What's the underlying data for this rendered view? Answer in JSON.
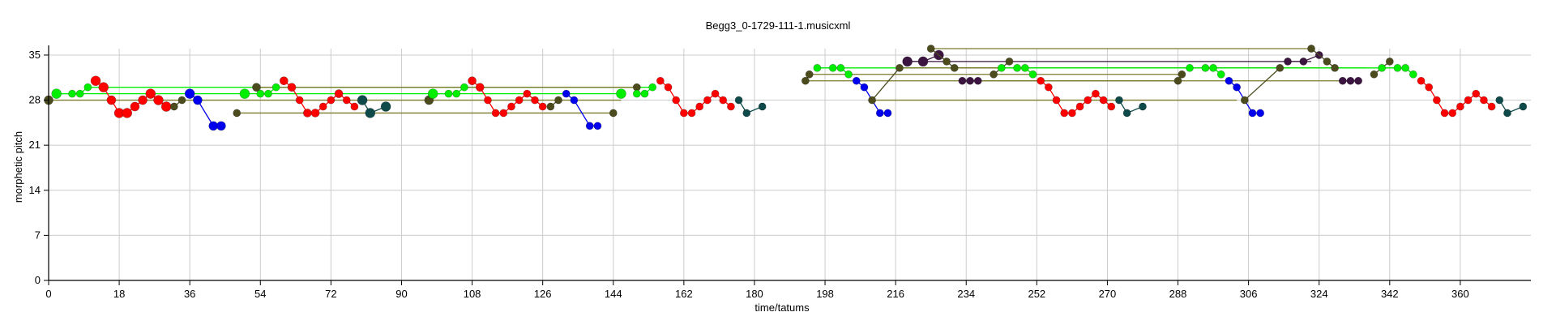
{
  "chart_data": {
    "type": "scatter",
    "title": "Begg3_0-1729-111-1.musicxml",
    "xlabel": "time/tatums",
    "ylabel": "morphetic pitch",
    "xlim": [
      0,
      378
    ],
    "ylim": [
      0,
      36
    ],
    "xticks": [
      0,
      18,
      36,
      54,
      72,
      90,
      108,
      126,
      144,
      162,
      180,
      198,
      216,
      234,
      252,
      270,
      288,
      306,
      324,
      342,
      360
    ],
    "yticks": [
      0,
      7,
      14,
      21,
      28,
      35
    ],
    "grid": true,
    "colors": {
      "red": "#ff0000",
      "green": "#00ee00",
      "blue": "#0000ee",
      "olive": "#4b4b1e",
      "teal": "#0f4a4a",
      "purple": "#3c1440",
      "olive_line": "#7a7a2a"
    },
    "links": [
      {
        "x1": 0,
        "x2": 146,
        "y": 28,
        "color": "olive_line"
      },
      {
        "x1": 2,
        "x2": 147,
        "y": 29,
        "color": "green"
      },
      {
        "x1": 10,
        "x2": 154,
        "y": 30,
        "color": "green"
      },
      {
        "x1": 48,
        "x2": 144,
        "y": 26,
        "color": "olive_line"
      },
      {
        "x1": 52,
        "x2": 150,
        "y": 30,
        "color": "olive_line"
      },
      {
        "x1": 193,
        "x2": 288,
        "y": 31,
        "color": "olive_line"
      },
      {
        "x1": 194,
        "x2": 289,
        "y": 32,
        "color": "olive_line"
      },
      {
        "x1": 197,
        "x2": 345,
        "y": 33,
        "color": "green"
      },
      {
        "x1": 209,
        "x2": 303,
        "y": 28,
        "color": "olive_line"
      },
      {
        "x1": 217,
        "x2": 314,
        "y": 33,
        "color": "olive_line"
      },
      {
        "x1": 219,
        "x2": 322,
        "y": 34,
        "color": "purple"
      },
      {
        "x1": 225,
        "x2": 322,
        "y": 36,
        "color": "olive_line"
      },
      {
        "x1": 231,
        "x2": 330,
        "y": 33,
        "color": "olive_line"
      },
      {
        "x1": 233,
        "x2": 332,
        "y": 31,
        "color": "olive_line"
      },
      {
        "x1": 248,
        "x2": 336,
        "y": 33,
        "color": "green"
      }
    ],
    "series": [
      {
        "color": "olive",
        "points": [
          [
            0,
            28,
            1.2
          ]
        ]
      },
      {
        "color": "green",
        "points": [
          [
            2,
            29,
            1.3
          ],
          [
            6,
            29,
            1
          ],
          [
            8,
            29,
            1
          ],
          [
            10,
            30,
            1
          ]
        ]
      },
      {
        "color": "red",
        "points": [
          [
            12,
            31,
            1.3
          ],
          [
            14,
            30,
            1.3
          ],
          [
            16,
            28,
            1.2
          ],
          [
            18,
            26,
            1.3
          ],
          [
            20,
            26,
            1.3
          ],
          [
            22,
            27,
            1.2
          ],
          [
            24,
            28,
            1.2
          ],
          [
            26,
            29,
            1.3
          ],
          [
            28,
            28,
            1.3
          ],
          [
            30,
            27,
            1.3
          ]
        ]
      },
      {
        "color": "olive",
        "points": [
          [
            32,
            27,
            1
          ],
          [
            34,
            28,
            1
          ]
        ]
      },
      {
        "color": "blue",
        "points": [
          [
            36,
            29,
            1.3
          ],
          [
            38,
            28,
            1.2
          ],
          [
            42,
            24,
            1.2
          ],
          [
            44,
            24,
            1.2
          ]
        ]
      },
      {
        "color": "olive",
        "points": [
          [
            48,
            26,
            1
          ]
        ]
      },
      {
        "color": "green",
        "points": [
          [
            50,
            29,
            1.3
          ]
        ]
      },
      {
        "color": "olive",
        "points": [
          [
            53,
            30,
            1.1
          ]
        ]
      },
      {
        "color": "green",
        "points": [
          [
            54,
            29,
            1
          ],
          [
            56,
            29,
            1
          ],
          [
            58,
            30,
            1
          ]
        ]
      },
      {
        "color": "red",
        "points": [
          [
            60,
            31,
            1.1
          ],
          [
            62,
            30,
            1.1
          ],
          [
            64,
            28,
            1
          ],
          [
            66,
            26,
            1.1
          ],
          [
            68,
            26,
            1.1
          ],
          [
            70,
            27,
            1
          ],
          [
            72,
            28,
            1
          ],
          [
            74,
            29,
            1.1
          ],
          [
            76,
            28,
            1
          ],
          [
            78,
            27,
            1
          ]
        ]
      },
      {
        "color": "teal",
        "points": [
          [
            80,
            28,
            1.3
          ],
          [
            82,
            26,
            1.3
          ],
          [
            86,
            27,
            1.3
          ]
        ]
      },
      {
        "color": "olive",
        "points": [
          [
            97,
            28,
            1.2
          ]
        ]
      },
      {
        "color": "green",
        "points": [
          [
            98,
            29,
            1.3
          ],
          [
            102,
            29,
            1
          ],
          [
            104,
            29,
            1
          ],
          [
            106,
            30,
            1
          ]
        ]
      },
      {
        "color": "red",
        "points": [
          [
            108,
            31,
            1.1
          ],
          [
            110,
            30,
            1.1
          ],
          [
            112,
            28,
            1
          ],
          [
            114,
            26,
            1
          ],
          [
            116,
            26,
            1
          ],
          [
            118,
            27,
            1
          ],
          [
            120,
            28,
            1
          ],
          [
            122,
            29,
            1
          ],
          [
            124,
            28,
            1
          ],
          [
            126,
            27,
            1
          ]
        ]
      },
      {
        "color": "olive",
        "points": [
          [
            128,
            27,
            1
          ],
          [
            130,
            28,
            1
          ]
        ]
      },
      {
        "color": "blue",
        "points": [
          [
            132,
            29,
            1
          ],
          [
            134,
            28,
            1
          ],
          [
            138,
            24,
            1
          ],
          [
            140,
            24,
            1
          ]
        ]
      },
      {
        "color": "olive",
        "points": [
          [
            144,
            26,
            1
          ]
        ]
      },
      {
        "color": "green",
        "points": [
          [
            146,
            29,
            1.3
          ]
        ]
      },
      {
        "color": "olive",
        "points": [
          [
            150,
            30,
            1
          ]
        ]
      },
      {
        "color": "green",
        "points": [
          [
            150,
            29,
            1
          ],
          [
            152,
            29,
            1
          ],
          [
            154,
            30,
            1
          ]
        ]
      },
      {
        "color": "red",
        "points": [
          [
            156,
            31,
            1
          ],
          [
            158,
            30,
            1
          ],
          [
            160,
            28,
            1
          ],
          [
            162,
            26,
            1
          ],
          [
            164,
            26,
            1
          ],
          [
            166,
            27,
            1
          ],
          [
            168,
            28,
            1
          ],
          [
            170,
            29,
            1
          ],
          [
            172,
            28,
            1
          ],
          [
            174,
            27,
            1
          ]
        ]
      },
      {
        "color": "teal",
        "points": [
          [
            176,
            28,
            1
          ],
          [
            178,
            26,
            1
          ],
          [
            182,
            27,
            1
          ]
        ]
      },
      {
        "color": "olive",
        "points": [
          [
            193,
            31,
            1
          ],
          [
            194,
            32,
            1
          ]
        ]
      },
      {
        "color": "green",
        "points": [
          [
            196,
            33,
            1
          ],
          [
            200,
            33,
            1
          ],
          [
            202,
            33,
            1
          ],
          [
            204,
            32,
            1
          ]
        ]
      },
      {
        "color": "blue",
        "points": [
          [
            206,
            31,
            1
          ],
          [
            208,
            30,
            1
          ],
          [
            212,
            26,
            1
          ],
          [
            214,
            26,
            1
          ]
        ]
      },
      {
        "color": "olive",
        "points": [
          [
            210,
            28,
            1
          ],
          [
            217,
            33,
            1
          ]
        ]
      },
      {
        "color": "purple",
        "points": [
          [
            219,
            34,
            1.3
          ],
          [
            223,
            34,
            1.3
          ],
          [
            227,
            35,
            1.3
          ]
        ]
      },
      {
        "color": "olive",
        "points": [
          [
            225,
            36,
            1
          ],
          [
            229,
            34,
            1
          ],
          [
            231,
            33,
            1
          ]
        ]
      },
      {
        "color": "purple",
        "points": [
          [
            233,
            31,
            1
          ],
          [
            235,
            31,
            1
          ],
          [
            237,
            31,
            1
          ]
        ]
      },
      {
        "color": "olive",
        "points": [
          [
            241,
            32,
            1
          ],
          [
            245,
            34,
            1
          ]
        ]
      },
      {
        "color": "green",
        "points": [
          [
            243,
            33,
            1
          ],
          [
            247,
            33,
            1
          ],
          [
            249,
            33,
            1
          ],
          [
            251,
            32,
            1
          ]
        ]
      },
      {
        "color": "red",
        "points": [
          [
            253,
            31,
            1
          ],
          [
            255,
            30,
            1
          ],
          [
            257,
            28,
            1
          ],
          [
            259,
            26,
            1
          ],
          [
            261,
            26,
            1
          ],
          [
            263,
            27,
            1
          ],
          [
            265,
            28,
            1
          ],
          [
            267,
            29,
            1
          ],
          [
            269,
            28,
            1
          ],
          [
            271,
            27,
            1
          ]
        ]
      },
      {
        "color": "teal",
        "points": [
          [
            273,
            28,
            1
          ],
          [
            275,
            26,
            1
          ],
          [
            279,
            27,
            1
          ]
        ]
      },
      {
        "color": "olive",
        "points": [
          [
            288,
            31,
            1
          ],
          [
            289,
            32,
            1
          ]
        ]
      },
      {
        "color": "green",
        "points": [
          [
            291,
            33,
            1
          ],
          [
            295,
            33,
            1
          ],
          [
            297,
            33,
            1
          ],
          [
            299,
            32,
            1
          ]
        ]
      },
      {
        "color": "blue",
        "points": [
          [
            301,
            31,
            1
          ],
          [
            303,
            30,
            1
          ],
          [
            307,
            26,
            1
          ],
          [
            309,
            26,
            1
          ]
        ]
      },
      {
        "color": "olive",
        "points": [
          [
            305,
            28,
            1
          ],
          [
            314,
            33,
            1
          ]
        ]
      },
      {
        "color": "purple",
        "points": [
          [
            316,
            34,
            1
          ],
          [
            320,
            34,
            1
          ],
          [
            324,
            35,
            1
          ]
        ]
      },
      {
        "color": "olive",
        "points": [
          [
            322,
            36,
            1
          ],
          [
            326,
            34,
            1
          ],
          [
            328,
            33,
            1
          ]
        ]
      },
      {
        "color": "purple",
        "points": [
          [
            330,
            31,
            1
          ],
          [
            332,
            31,
            1
          ],
          [
            334,
            31,
            1
          ]
        ]
      },
      {
        "color": "olive",
        "points": [
          [
            338,
            32,
            1
          ],
          [
            342,
            34,
            1
          ]
        ]
      },
      {
        "color": "green",
        "points": [
          [
            340,
            33,
            1
          ],
          [
            344,
            33,
            1
          ],
          [
            346,
            33,
            1
          ],
          [
            348,
            32,
            1
          ]
        ]
      },
      {
        "color": "red",
        "points": [
          [
            350,
            31,
            1
          ],
          [
            352,
            30,
            1
          ],
          [
            354,
            28,
            1
          ],
          [
            356,
            26,
            1
          ],
          [
            358,
            26,
            1
          ],
          [
            360,
            27,
            1
          ],
          [
            362,
            28,
            1
          ],
          [
            364,
            29,
            1
          ],
          [
            366,
            28,
            1
          ],
          [
            368,
            27,
            1
          ]
        ]
      },
      {
        "color": "teal",
        "points": [
          [
            370,
            28,
            1
          ],
          [
            372,
            26,
            1
          ],
          [
            376,
            27,
            1
          ]
        ]
      }
    ]
  }
}
